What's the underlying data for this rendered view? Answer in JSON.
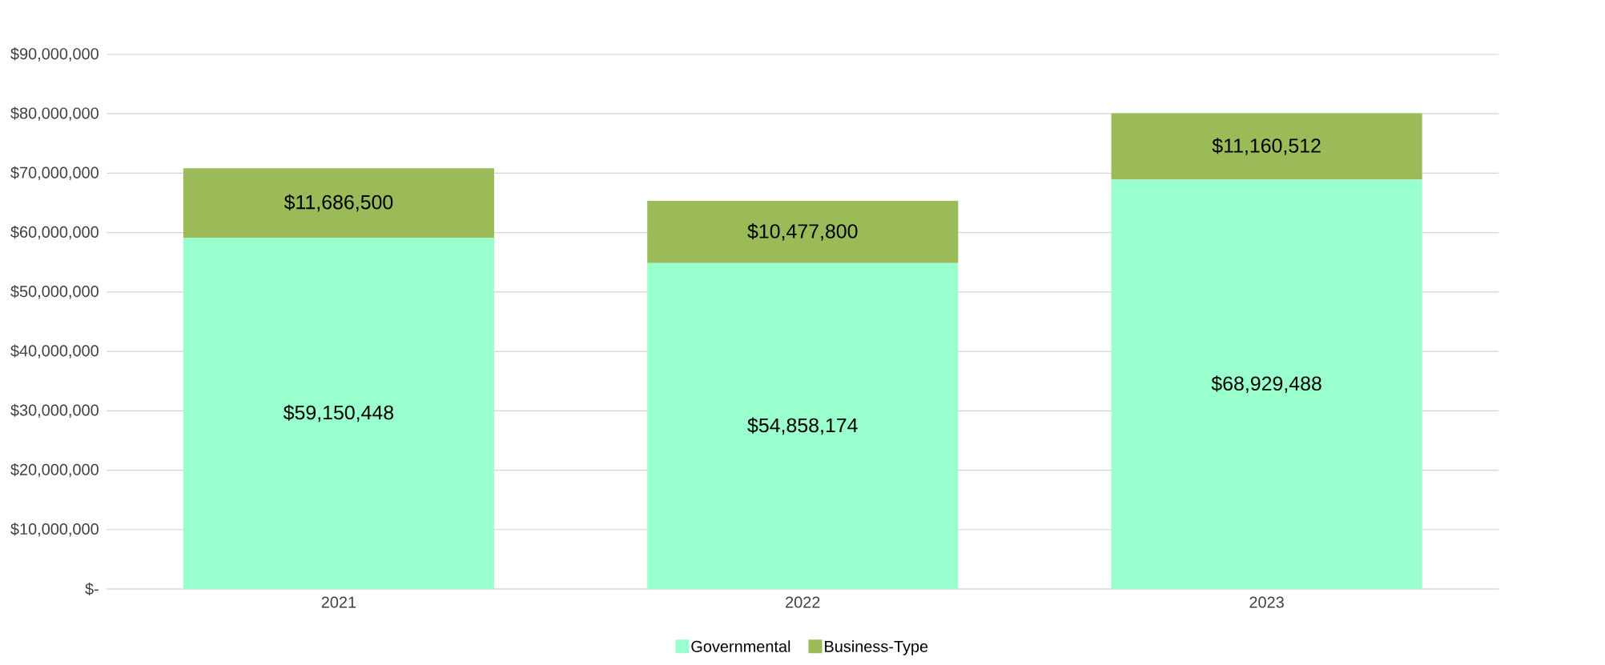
{
  "chart_data": {
    "type": "bar",
    "stacked": true,
    "categories": [
      "2021",
      "2022",
      "2023"
    ],
    "series": [
      {
        "name": "Governmental",
        "color": "#99ffcc",
        "values": [
          59150448,
          54858174,
          68929488
        ],
        "value_labels": [
          "$59,150,448",
          "$54,858,174",
          "$68,929,488"
        ]
      },
      {
        "name": "Business-Type",
        "color": "#9bbb59",
        "values": [
          11686500,
          10477800,
          11160512
        ],
        "value_labels": [
          "$11,686,500",
          "$10,477,800",
          "$11,160,512"
        ]
      }
    ],
    "ylim": [
      0,
      90000000
    ],
    "yticks": [
      {
        "value": 0,
        "label": "$-"
      },
      {
        "value": 10000000,
        "label": "$10,000,000"
      },
      {
        "value": 20000000,
        "label": "$20,000,000"
      },
      {
        "value": 30000000,
        "label": "$30,000,000"
      },
      {
        "value": 40000000,
        "label": "$40,000,000"
      },
      {
        "value": 50000000,
        "label": "$50,000,000"
      },
      {
        "value": 60000000,
        "label": "$60,000,000"
      },
      {
        "value": 70000000,
        "label": "$70,000,000"
      },
      {
        "value": 80000000,
        "label": "$80,000,000"
      },
      {
        "value": 90000000,
        "label": "$90,000,000"
      }
    ],
    "grid": "y",
    "legend": "bottom"
  }
}
